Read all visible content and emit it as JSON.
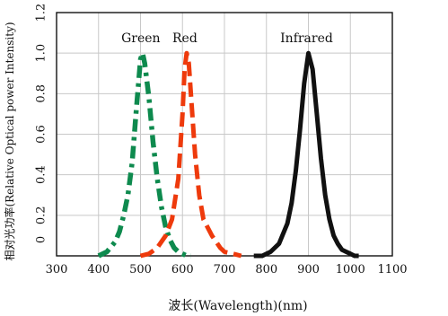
{
  "chart_data": {
    "type": "line",
    "xlabel": "波长(Wavelength)(nm)",
    "ylabel": "相对光功率(Relative Optical power Intensity)",
    "xlim": [
      300,
      1100
    ],
    "ylim": [
      0,
      1.2
    ],
    "x_ticks": [
      "300",
      "400",
      "500",
      "600",
      "700",
      "800",
      "900",
      "1000",
      "1100"
    ],
    "y_ticks": [
      "0",
      "0.2",
      "0.4",
      "0.6",
      "0.8",
      "1.0",
      "1.2"
    ],
    "grid": true,
    "legend": "inline labels above peaks",
    "series": [
      {
        "name": "Green",
        "color": "#0e8a4e",
        "style": "dash-dot",
        "x": [
          400,
          420,
          440,
          450,
          460,
          470,
          480,
          490,
          500,
          505,
          510,
          520,
          530,
          540,
          550,
          560,
          570,
          580,
          590,
          600,
          610,
          620
        ],
        "y": [
          0.0,
          0.02,
          0.07,
          0.12,
          0.2,
          0.3,
          0.46,
          0.72,
          0.97,
          1.0,
          0.95,
          0.78,
          0.56,
          0.38,
          0.24,
          0.14,
          0.08,
          0.04,
          0.02,
          0.01,
          0.0,
          0.0
        ]
      },
      {
        "name": "Red",
        "color": "#ee3a0c",
        "style": "long-dash",
        "x": [
          500,
          520,
          540,
          560,
          575,
          590,
          600,
          605,
          610,
          615,
          620,
          630,
          640,
          650,
          660,
          670,
          680,
          690,
          700,
          720,
          740
        ],
        "y": [
          0.0,
          0.01,
          0.04,
          0.1,
          0.18,
          0.38,
          0.7,
          0.92,
          1.0,
          0.95,
          0.8,
          0.5,
          0.3,
          0.18,
          0.14,
          0.1,
          0.07,
          0.04,
          0.02,
          0.01,
          0.0
        ]
      },
      {
        "name": "Infrared",
        "color": "#111111",
        "style": "solid",
        "x": [
          770,
          790,
          810,
          830,
          850,
          860,
          870,
          880,
          890,
          900,
          910,
          920,
          930,
          940,
          950,
          960,
          970,
          980,
          990,
          1000,
          1010,
          1020
        ],
        "y": [
          0.0,
          0.0,
          0.02,
          0.06,
          0.16,
          0.26,
          0.42,
          0.62,
          0.85,
          1.0,
          0.92,
          0.7,
          0.48,
          0.3,
          0.18,
          0.1,
          0.06,
          0.03,
          0.02,
          0.01,
          0.0,
          0.0
        ]
      }
    ]
  }
}
